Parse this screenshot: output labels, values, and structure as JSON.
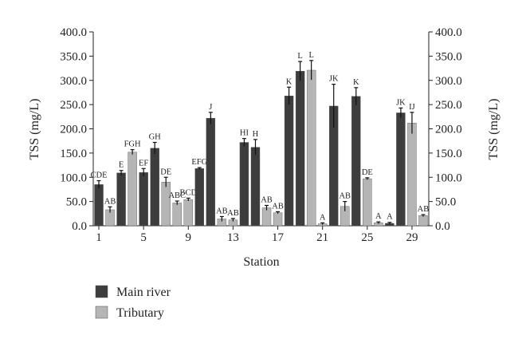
{
  "chart_data": {
    "type": "bar",
    "xlabel": "Station",
    "ylabel": "TSS (mg/L)",
    "ylabel_right": "TSS (mg/L)",
    "ylim": [
      0,
      400
    ],
    "y_ticks": [
      "0.0",
      "50.0",
      "100.0",
      "150.0",
      "200.0",
      "250.0",
      "300.0",
      "350.0",
      "400.0"
    ],
    "y_tick_values": [
      0,
      50,
      100,
      150,
      200,
      250,
      300,
      350,
      400
    ],
    "x_tick_labels": [
      "1",
      "5",
      "9",
      "13",
      "17",
      "21",
      "25",
      "29"
    ],
    "x_tick_stations": [
      1,
      5,
      9,
      13,
      17,
      21,
      25,
      29
    ],
    "grid": false,
    "legend_position": "bottom-left",
    "series_styles": [
      {
        "name": "Main river",
        "color": "#3d3d3d"
      },
      {
        "name": "Tributary",
        "color": "#b5b5b5"
      }
    ],
    "bars": [
      {
        "station": 1,
        "series": "Main river",
        "value": 85,
        "error": 8,
        "label": "CDE"
      },
      {
        "station": 2,
        "series": "Tributary",
        "value": 33,
        "error": 6,
        "label": "AB"
      },
      {
        "station": 3,
        "series": "Main river",
        "value": 109,
        "error": 5,
        "label": "E"
      },
      {
        "station": 4,
        "series": "Tributary",
        "value": 152,
        "error": 5,
        "label": "FGH"
      },
      {
        "station": 5,
        "series": "Main river",
        "value": 110,
        "error": 8,
        "label": "EF"
      },
      {
        "station": 6,
        "series": "Main river",
        "value": 160,
        "error": 12,
        "label": "GH"
      },
      {
        "station": 7,
        "series": "Tributary",
        "value": 90,
        "error": 10,
        "label": "DE"
      },
      {
        "station": 8,
        "series": "Tributary",
        "value": 47,
        "error": 4,
        "label": "ABC"
      },
      {
        "station": 9,
        "series": "Tributary",
        "value": 54,
        "error": 3,
        "label": "BCD"
      },
      {
        "station": 10,
        "series": "Main river",
        "value": 118,
        "error": 2,
        "label": "EFG"
      },
      {
        "station": 11,
        "series": "Main river",
        "value": 222,
        "error": 12,
        "label": "J"
      },
      {
        "station": 12,
        "series": "Tributary",
        "value": 14,
        "error": 5,
        "label": "AB"
      },
      {
        "station": 13,
        "series": "Tributary",
        "value": 12,
        "error": 3,
        "label": "AB"
      },
      {
        "station": 14,
        "series": "Main river",
        "value": 172,
        "error": 8,
        "label": "HI"
      },
      {
        "station": 15,
        "series": "Main river",
        "value": 162,
        "error": 16,
        "label": "H"
      },
      {
        "station": 16,
        "series": "Tributary",
        "value": 37,
        "error": 5,
        "label": "AB"
      },
      {
        "station": 17,
        "series": "Tributary",
        "value": 27,
        "error": 2,
        "label": "AB"
      },
      {
        "station": 18,
        "series": "Main river",
        "value": 268,
        "error": 18,
        "label": "K"
      },
      {
        "station": 19,
        "series": "Main river",
        "value": 319,
        "error": 20,
        "label": "L"
      },
      {
        "station": 20,
        "series": "Tributary",
        "value": 321,
        "error": 20,
        "label": "L"
      },
      {
        "station": 21,
        "series": "Tributary",
        "value": 4,
        "error": 2,
        "label": "A"
      },
      {
        "station": 22,
        "series": "Main river",
        "value": 247,
        "error": 45,
        "label": "JK"
      },
      {
        "station": 23,
        "series": "Tributary",
        "value": 40,
        "error": 10,
        "label": "AB"
      },
      {
        "station": 24,
        "series": "Main river",
        "value": 267,
        "error": 18,
        "label": "K"
      },
      {
        "station": 25,
        "series": "Tributary",
        "value": 97,
        "error": 2,
        "label": "DE"
      },
      {
        "station": 26,
        "series": "Tributary",
        "value": 6,
        "error": 2,
        "label": "A"
      },
      {
        "station": 27,
        "series": "Main river",
        "value": 5,
        "error": 2,
        "label": "A"
      },
      {
        "station": 28,
        "series": "Main river",
        "value": 233,
        "error": 10,
        "label": "JK"
      },
      {
        "station": 29,
        "series": "Tributary",
        "value": 212,
        "error": 22,
        "label": "IJ"
      },
      {
        "station": 30,
        "series": "Tributary",
        "value": 21,
        "error": 2,
        "label": "AB"
      }
    ]
  }
}
